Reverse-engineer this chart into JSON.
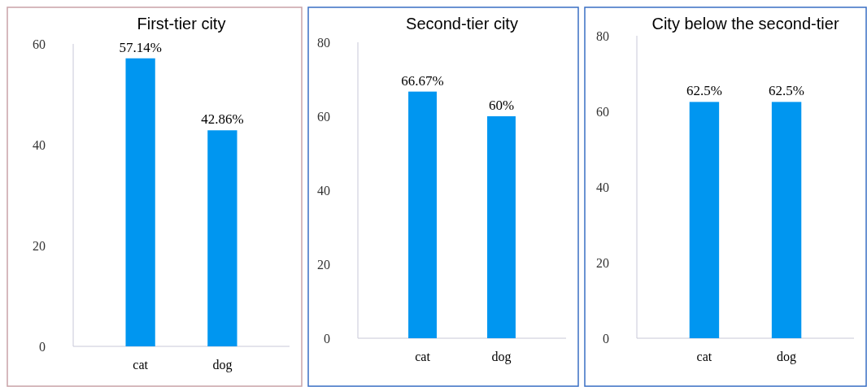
{
  "chart_data": [
    {
      "type": "bar",
      "title": "First-tier city",
      "categories": [
        "cat",
        "dog"
      ],
      "values": [
        57.14,
        42.86
      ],
      "value_labels": [
        "57.14%",
        "42.86%"
      ],
      "color": "#0096f0",
      "ylim": [
        0,
        60
      ],
      "yticks": [
        0,
        20,
        40,
        60
      ]
    },
    {
      "type": "bar",
      "title": "Second-tier city",
      "categories": [
        "cat",
        "dog"
      ],
      "values": [
        66.67,
        60
      ],
      "value_labels": [
        "66.67%",
        "60%"
      ],
      "color": "#0096f0",
      "ylim": [
        0,
        80
      ],
      "yticks": [
        0,
        20,
        40,
        60,
        80
      ]
    },
    {
      "type": "bar",
      "title": "City below the second-tier",
      "categories": [
        "cat",
        "dog"
      ],
      "values": [
        62.5,
        62.5
      ],
      "value_labels": [
        "62.5%",
        "62.5%"
      ],
      "color": "#0096f0",
      "ylim": [
        0,
        80
      ],
      "yticks": [
        0,
        20,
        40,
        60,
        80
      ]
    }
  ]
}
